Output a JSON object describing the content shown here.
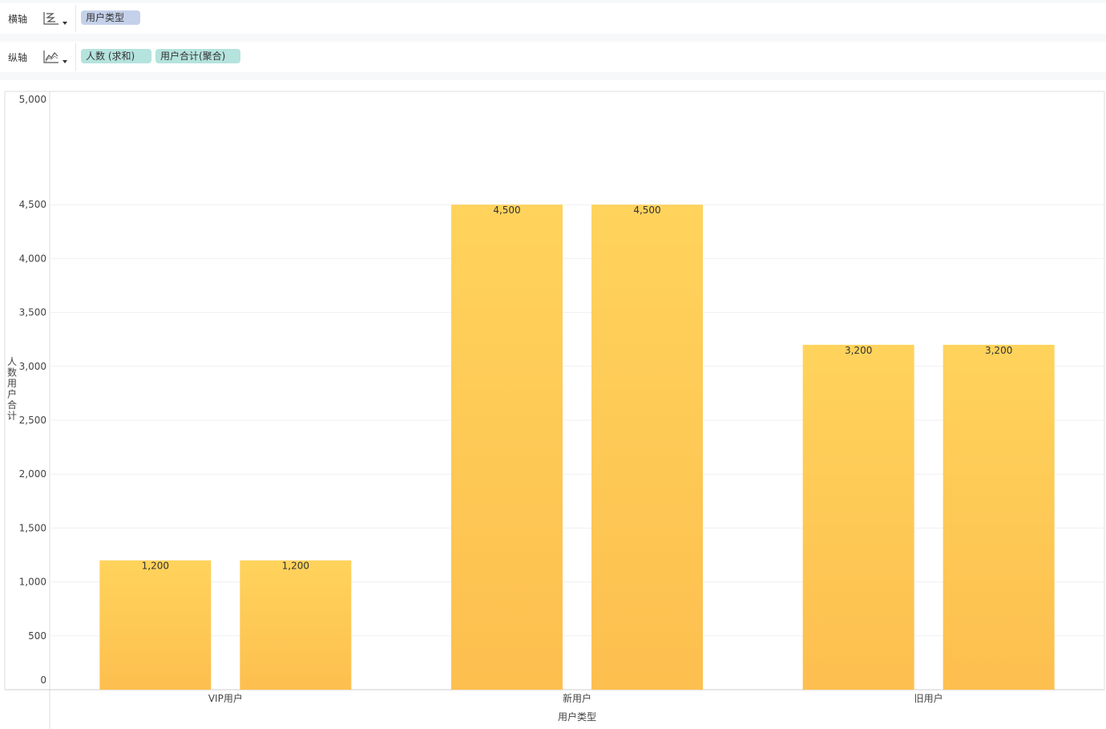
{
  "toolbar": {
    "x_axis": {
      "label": "横轴",
      "chart_icon": "chart-type-icon",
      "fields": [
        {
          "label": "用户类型",
          "kind": "dimension"
        }
      ]
    },
    "y_axis": {
      "label": "纵轴",
      "chart_icon": "line-chart-icon",
      "fields": [
        {
          "label": "人数 (求和)",
          "kind": "measure"
        },
        {
          "label": "用户合计(聚合)",
          "kind": "measure"
        }
      ]
    }
  },
  "colors": {
    "bar_top": "#ffd35c",
    "bar_bottom": "#fdbf4f",
    "dimension_pill": "#c5d1ea",
    "measure_pill": "#b5e3dd"
  },
  "chart_data": {
    "type": "bar",
    "categories": [
      "VIP用户",
      "新用户",
      "旧用户"
    ],
    "series": [
      {
        "values": [
          1200,
          4500,
          3200
        ]
      },
      {
        "values": [
          1200,
          4500,
          3200
        ]
      }
    ],
    "data_labels": [
      [
        "1,200",
        "4,500",
        "3,200"
      ],
      [
        "1,200",
        "4,500",
        "3,200"
      ]
    ],
    "xlabel": "用户类型",
    "ylabel": "人数用户合计",
    "ylim": [
      0,
      5000
    ],
    "yticks": [
      0,
      500,
      1000,
      1500,
      2000,
      2500,
      3000,
      3500,
      4000,
      4500,
      5000
    ],
    "ytick_labels": [
      "0",
      "500",
      "1,000",
      "1,500",
      "2,000",
      "2,500",
      "3,000",
      "3,500",
      "4,000",
      "4,500",
      "5,000"
    ],
    "grid": true,
    "legend": "none"
  }
}
